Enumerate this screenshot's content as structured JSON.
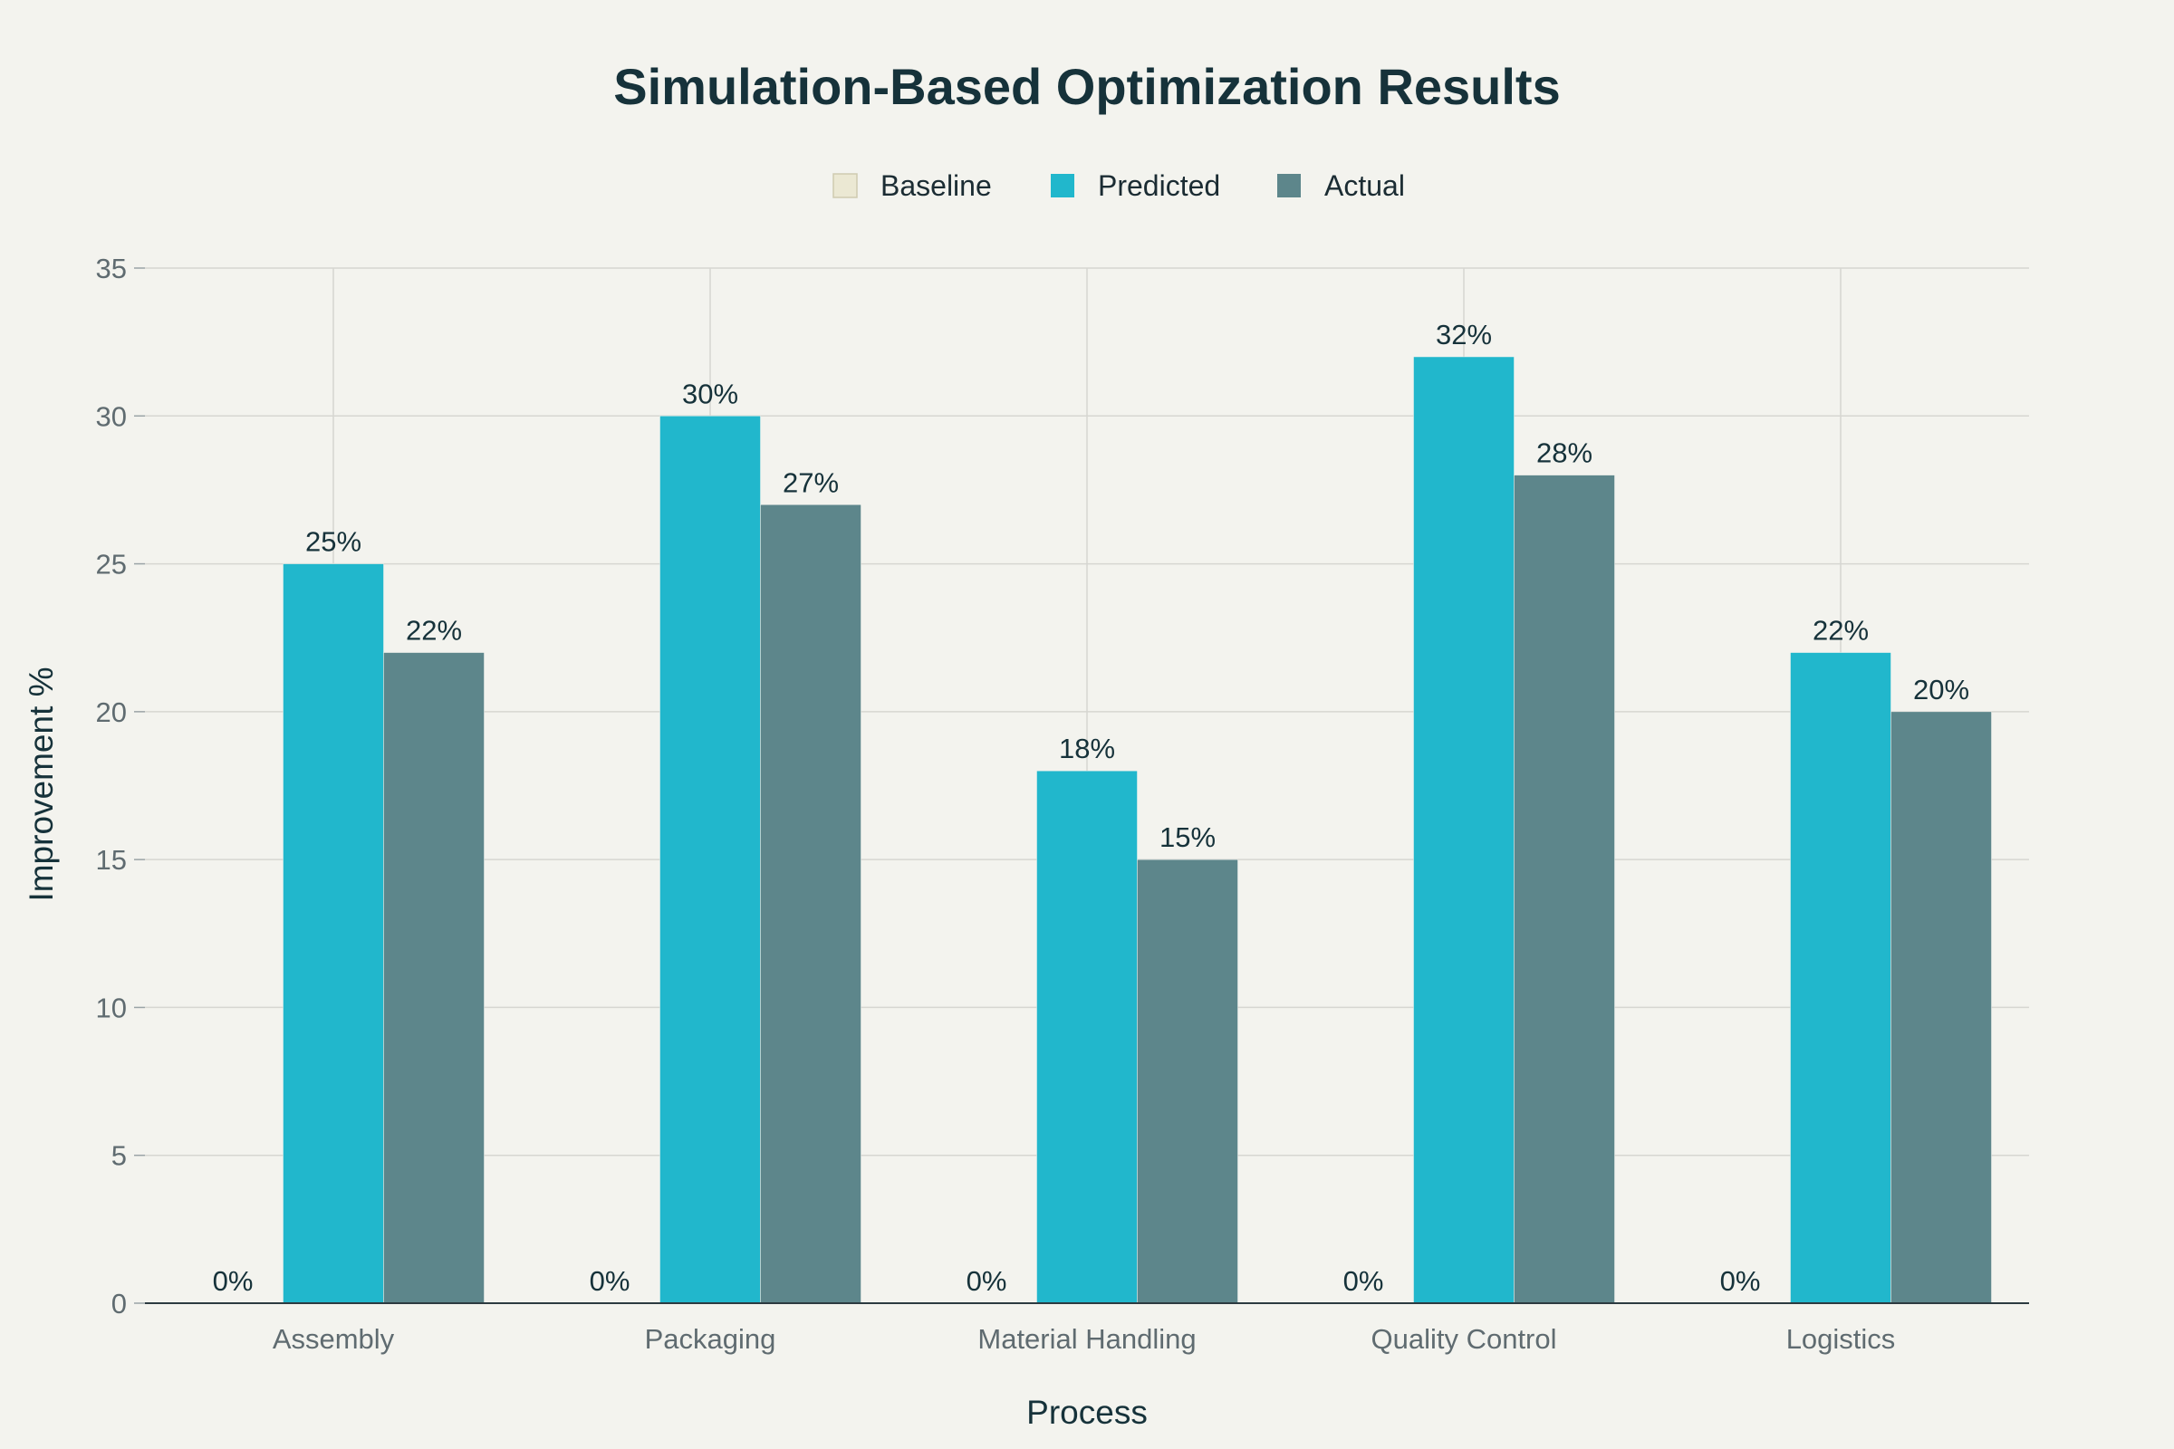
{
  "chart_data": {
    "type": "bar",
    "title": "Simulation-Based Optimization Results",
    "xlabel": "Process",
    "ylabel": "Improvement %",
    "categories": [
      "Assembly",
      "Packaging",
      "Material Handling",
      "Quality Control",
      "Logistics"
    ],
    "series": [
      {
        "name": "Baseline",
        "values": [
          0,
          0,
          0,
          0,
          0
        ],
        "color": "#ebe8d3"
      },
      {
        "name": "Predicted",
        "values": [
          25,
          30,
          18,
          32,
          22
        ],
        "color": "#21b7cc"
      },
      {
        "name": "Actual",
        "values": [
          22,
          27,
          15,
          28,
          20
        ],
        "color": "#5d868b"
      }
    ],
    "ylim": [
      0,
      35
    ],
    "yticks": [
      0,
      5,
      10,
      15,
      20,
      25,
      30,
      35
    ],
    "label_suffix": "%",
    "grid": true,
    "legend_position": "top-center"
  }
}
